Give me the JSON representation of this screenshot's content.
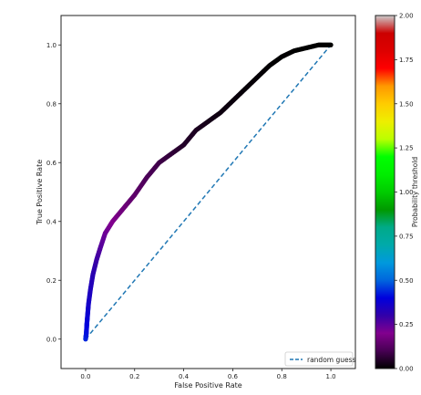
{
  "chart_data": {
    "type": "scatter",
    "title": "",
    "xlabel": "False Positive Rate",
    "ylabel": "True Positive Rate",
    "xlim": [
      -0.1,
      1.1
    ],
    "ylim": [
      -0.1,
      1.1
    ],
    "xticks": [
      0.0,
      0.2,
      0.4,
      0.6,
      0.8,
      1.0
    ],
    "yticks": [
      0.0,
      0.2,
      0.4,
      0.6,
      0.8,
      1.0
    ],
    "xtick_labels": [
      "0.0",
      "0.2",
      "0.4",
      "0.6",
      "0.8",
      "1.0"
    ],
    "ytick_labels": [
      "0.0",
      "0.2",
      "0.4",
      "0.6",
      "0.8",
      "1.0"
    ],
    "grid": false,
    "series": [
      {
        "kind": "roc_curve_colored_by_threshold",
        "colormap": "nipy_spectral",
        "points": [
          {
            "fpr": 0.0,
            "tpr": 0.0,
            "threshold": 0.44
          },
          {
            "fpr": 0.003,
            "tpr": 0.02,
            "threshold": 0.42
          },
          {
            "fpr": 0.005,
            "tpr": 0.05,
            "threshold": 0.4
          },
          {
            "fpr": 0.008,
            "tpr": 0.08,
            "threshold": 0.38
          },
          {
            "fpr": 0.012,
            "tpr": 0.12,
            "threshold": 0.36
          },
          {
            "fpr": 0.02,
            "tpr": 0.17,
            "threshold": 0.34
          },
          {
            "fpr": 0.03,
            "tpr": 0.22,
            "threshold": 0.32
          },
          {
            "fpr": 0.045,
            "tpr": 0.27,
            "threshold": 0.29
          },
          {
            "fpr": 0.06,
            "tpr": 0.31,
            "threshold": 0.26
          },
          {
            "fpr": 0.08,
            "tpr": 0.36,
            "threshold": 0.23
          },
          {
            "fpr": 0.11,
            "tpr": 0.4,
            "threshold": 0.2
          },
          {
            "fpr": 0.15,
            "tpr": 0.44,
            "threshold": 0.17
          },
          {
            "fpr": 0.2,
            "tpr": 0.49,
            "threshold": 0.14
          },
          {
            "fpr": 0.25,
            "tpr": 0.55,
            "threshold": 0.11
          },
          {
            "fpr": 0.3,
            "tpr": 0.6,
            "threshold": 0.09
          },
          {
            "fpr": 0.35,
            "tpr": 0.63,
            "threshold": 0.07
          },
          {
            "fpr": 0.4,
            "tpr": 0.66,
            "threshold": 0.05
          },
          {
            "fpr": 0.45,
            "tpr": 0.71,
            "threshold": 0.04
          },
          {
            "fpr": 0.5,
            "tpr": 0.74,
            "threshold": 0.03
          },
          {
            "fpr": 0.55,
            "tpr": 0.77,
            "threshold": 0.02
          },
          {
            "fpr": 0.6,
            "tpr": 0.81,
            "threshold": 0.015
          },
          {
            "fpr": 0.65,
            "tpr": 0.85,
            "threshold": 0.01
          },
          {
            "fpr": 0.7,
            "tpr": 0.89,
            "threshold": 0.008
          },
          {
            "fpr": 0.75,
            "tpr": 0.93,
            "threshold": 0.005
          },
          {
            "fpr": 0.8,
            "tpr": 0.96,
            "threshold": 0.003
          },
          {
            "fpr": 0.85,
            "tpr": 0.98,
            "threshold": 0.002
          },
          {
            "fpr": 0.9,
            "tpr": 0.99,
            "threshold": 0.001
          },
          {
            "fpr": 0.95,
            "tpr": 1.0,
            "threshold": 0.0005
          },
          {
            "fpr": 1.0,
            "tpr": 1.0,
            "threshold": 0.0
          }
        ]
      },
      {
        "name": "random guess",
        "kind": "line",
        "style": "dashed",
        "color": "#1f77b4",
        "x": [
          0.0,
          1.0
        ],
        "y": [
          0.0,
          1.0
        ]
      }
    ],
    "legend": {
      "placement": "lower-right",
      "entries": [
        "random guess"
      ]
    },
    "colorbar": {
      "label": "Probability threshold",
      "range": [
        0.0,
        2.0
      ],
      "ticks": [
        0.0,
        0.25,
        0.5,
        0.75,
        1.0,
        1.25,
        1.5,
        1.75,
        2.0
      ],
      "tick_labels": [
        "0.00",
        "0.25",
        "0.50",
        "0.75",
        "1.00",
        "1.25",
        "1.50",
        "1.75",
        "2.00"
      ]
    }
  },
  "colors": {
    "dashed_line": "#1f77b4",
    "axes": "#222222",
    "nipy_spectral_stops": [
      [
        0.0,
        "#000000"
      ],
      [
        0.05,
        "#470053"
      ],
      [
        0.1,
        "#82008e"
      ],
      [
        0.15,
        "#3200a9"
      ],
      [
        0.2,
        "#0000dd"
      ],
      [
        0.25,
        "#0066dd"
      ],
      [
        0.3,
        "#0099dd"
      ],
      [
        0.35,
        "#00aaaa"
      ],
      [
        0.4,
        "#00aa88"
      ],
      [
        0.45,
        "#009900"
      ],
      [
        0.5,
        "#00cc00"
      ],
      [
        0.55,
        "#00ee00"
      ],
      [
        0.6,
        "#00ff00"
      ],
      [
        0.65,
        "#bbff00"
      ],
      [
        0.7,
        "#eeee00"
      ],
      [
        0.75,
        "#ffcc00"
      ],
      [
        0.8,
        "#ff9900"
      ],
      [
        0.85,
        "#ff0000"
      ],
      [
        0.9,
        "#dd0000"
      ],
      [
        0.95,
        "#cc0000"
      ],
      [
        1.0,
        "#cccccc"
      ]
    ]
  }
}
